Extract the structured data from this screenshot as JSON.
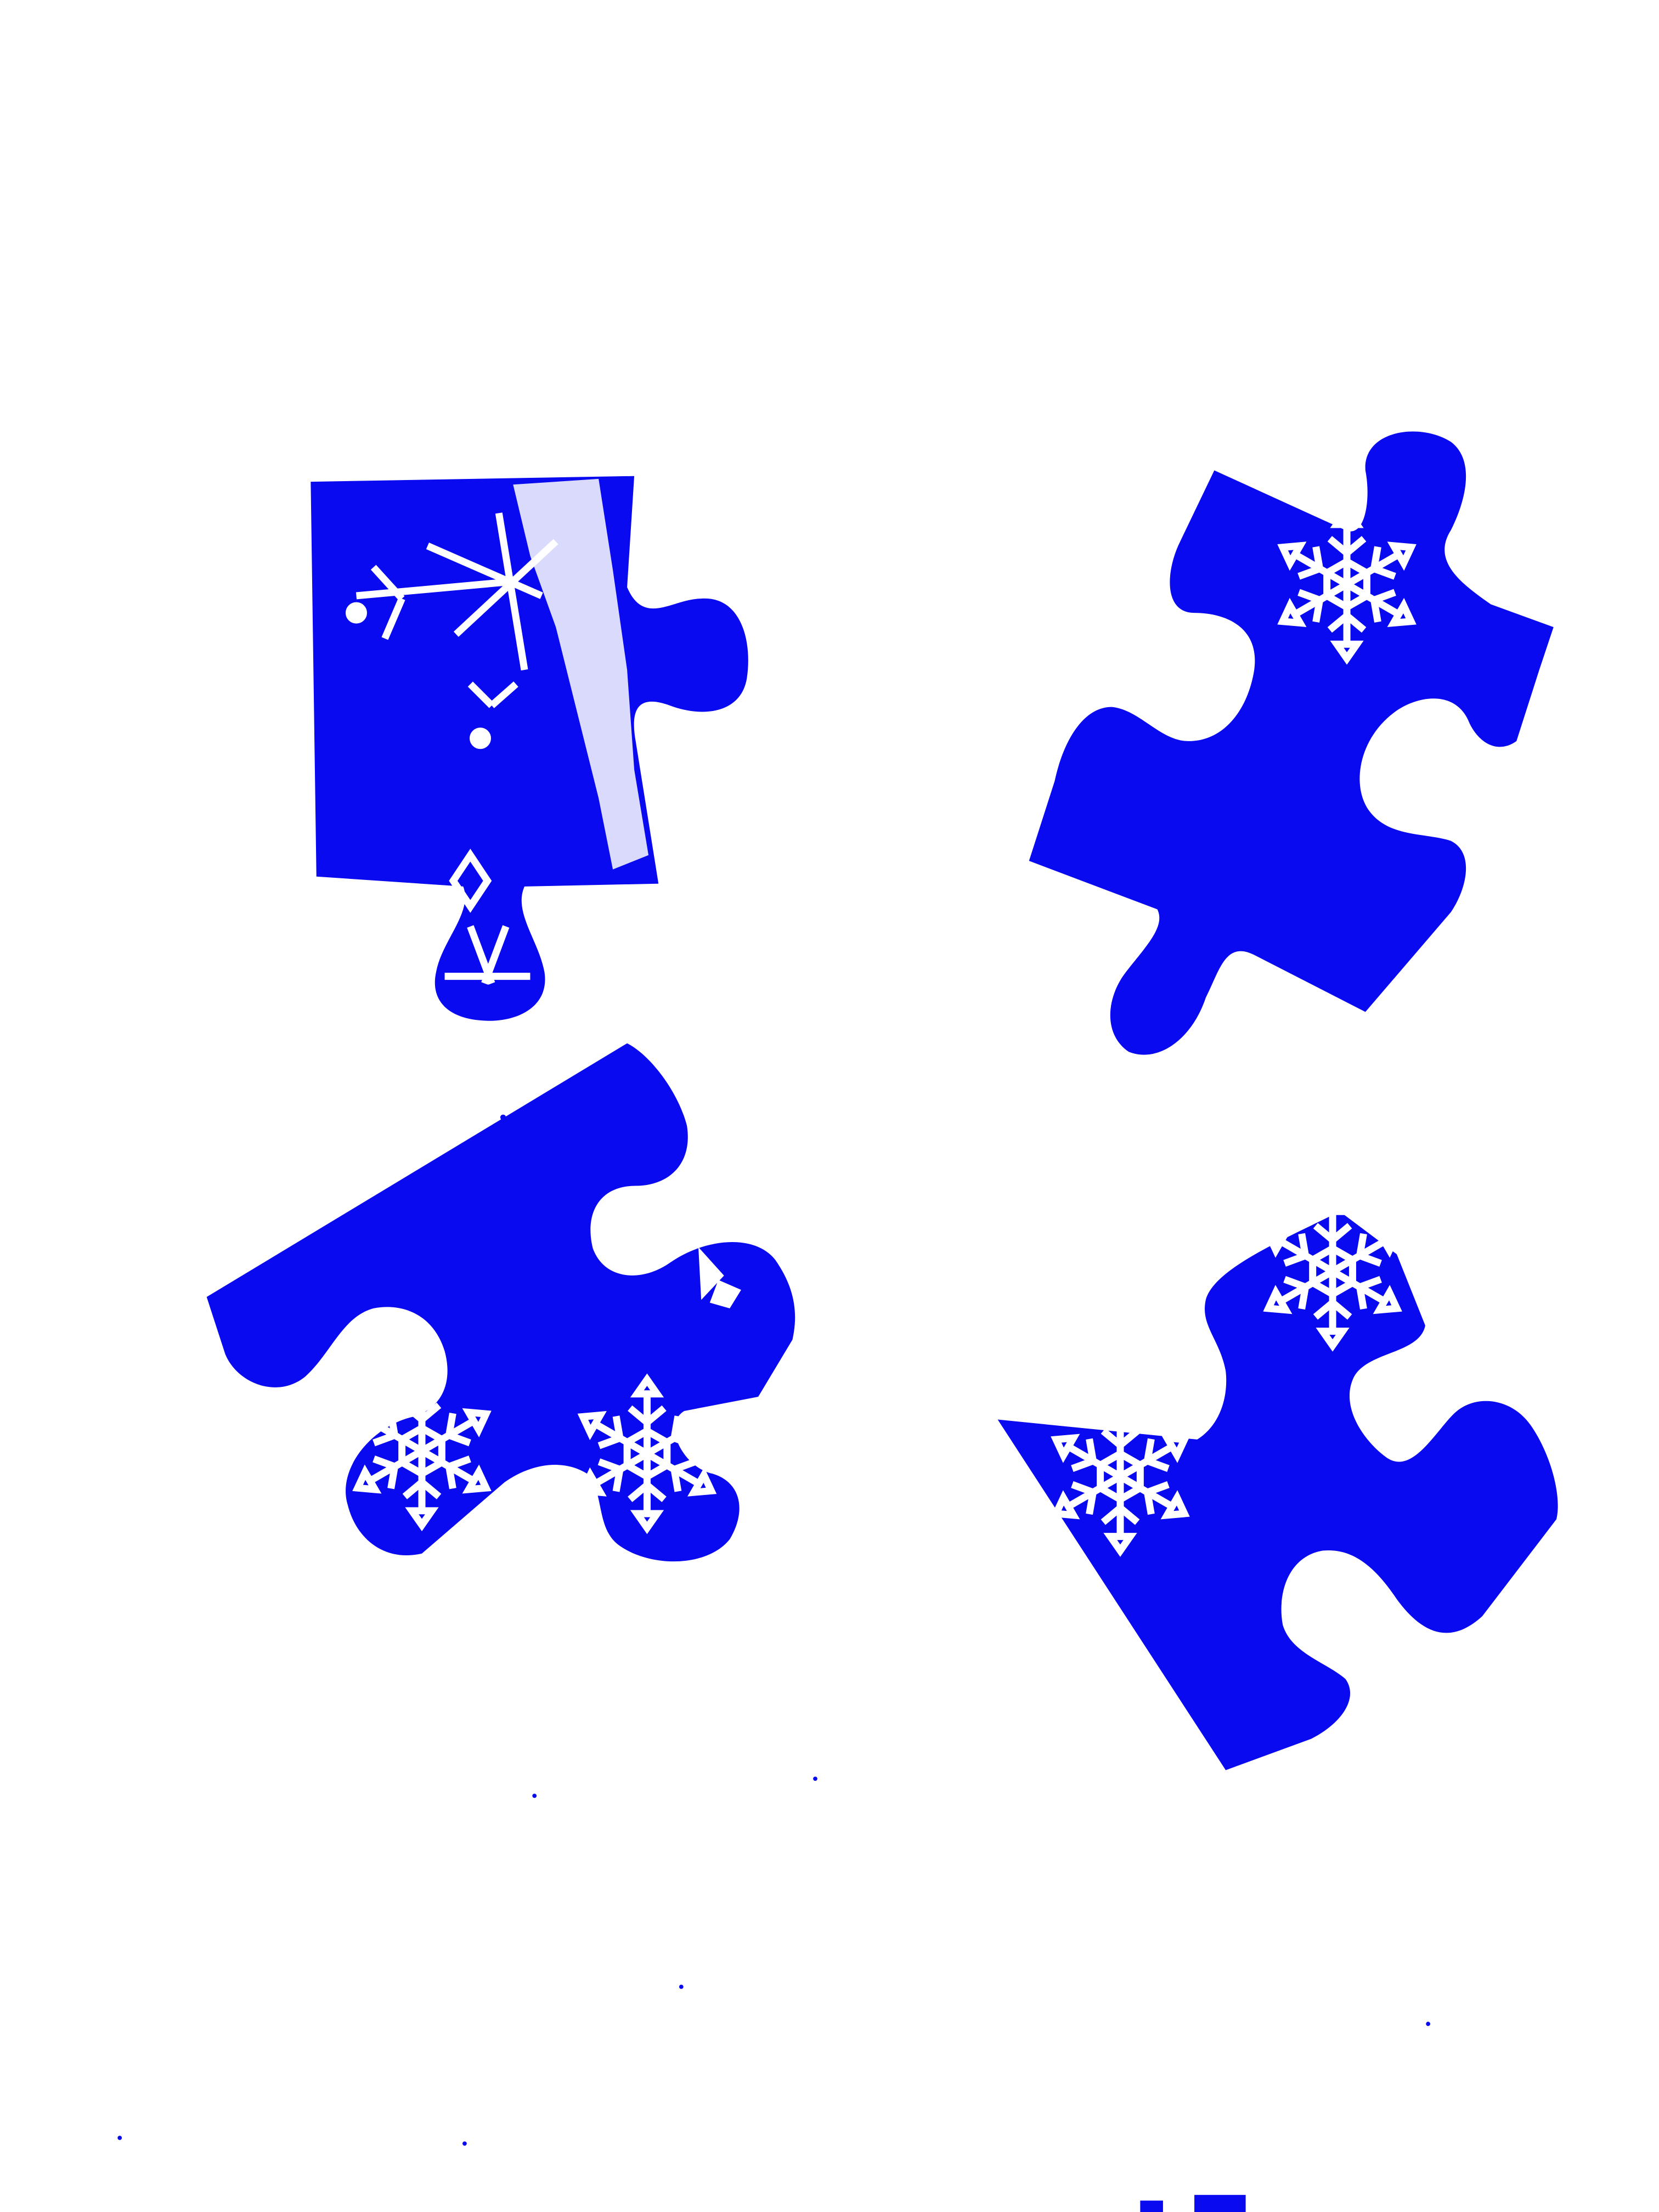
{
  "scene": {
    "background": "#ffffff",
    "piece_color": "#0a0af0",
    "pattern_color": "#ffffff",
    "pieces": [
      {
        "name": "puzzle-piece-top-left",
        "motif": "snowflake-icon"
      },
      {
        "name": "puzzle-piece-top-right",
        "motif": "snowflake-icon"
      },
      {
        "name": "puzzle-piece-bottom-left",
        "motif": "snowflake-icon"
      },
      {
        "name": "puzzle-piece-bottom-right",
        "motif": "snowflake-icon"
      }
    ]
  }
}
